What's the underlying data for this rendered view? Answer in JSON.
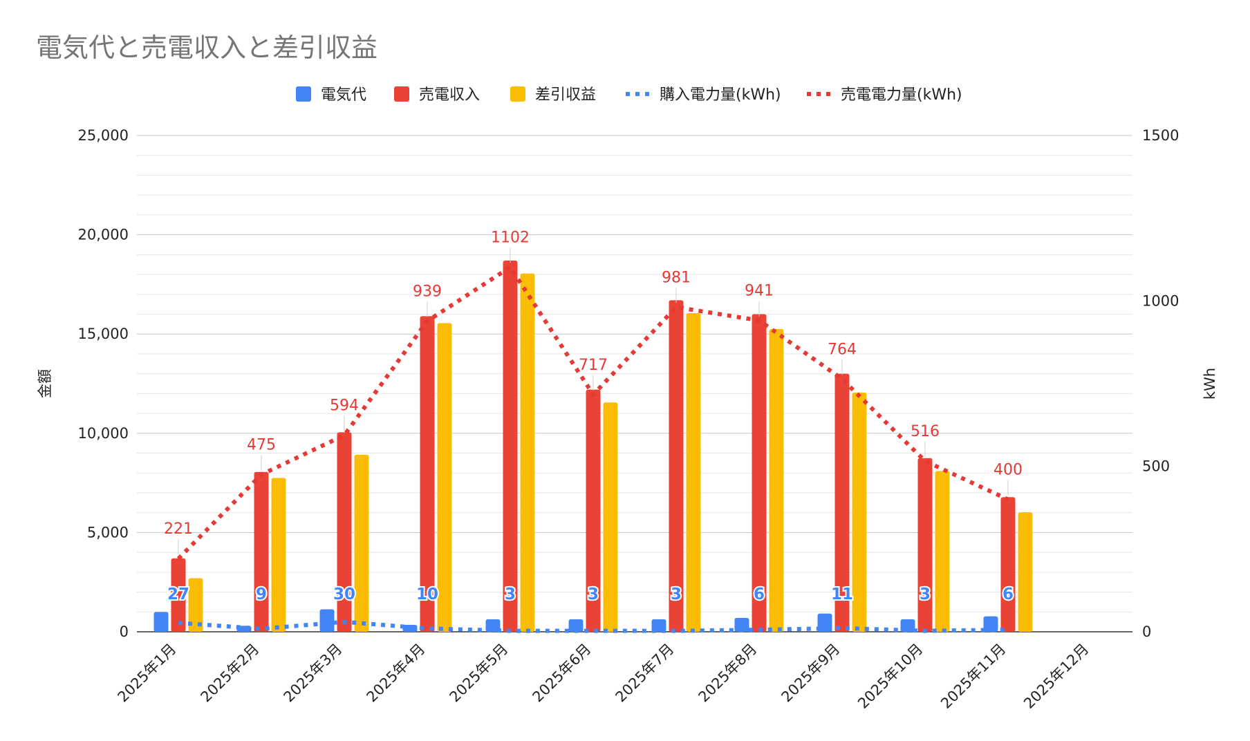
{
  "chart_data": {
    "type": "bar",
    "title": "電気代と売電収入と差引収益",
    "categories": [
      "2025年1月",
      "2025年2月",
      "2025年3月",
      "2025年4月",
      "2025年5月",
      "2025年6月",
      "2025年7月",
      "2025年8月",
      "2025年9月",
      "2025年10月",
      "2025年11月",
      "2025年12月"
    ],
    "ylabel": "金額",
    "y2label": "kWh",
    "ylim": [
      0,
      25000
    ],
    "y2lim": [
      0,
      1500
    ],
    "yticks": [
      "0",
      "5,000",
      "10,000",
      "15,000",
      "20,000",
      "25,000"
    ],
    "y2ticks": [
      "0",
      "500",
      "1000",
      "1500"
    ],
    "legend_position": "top",
    "series": [
      {
        "name": "電気代",
        "kind": "bar",
        "axis": "left",
        "color": "#4285f4",
        "values": [
          1000,
          300,
          1130,
          350,
          630,
          630,
          630,
          700,
          920,
          630,
          780,
          null
        ]
      },
      {
        "name": "売電収入",
        "kind": "bar",
        "axis": "left",
        "color": "#ea4335",
        "values": [
          3700,
          8050,
          10050,
          15900,
          18700,
          12200,
          16700,
          16000,
          13000,
          8750,
          6780,
          null
        ]
      },
      {
        "name": "差引収益",
        "kind": "bar",
        "axis": "left",
        "color": "#fbbc04",
        "values": [
          2700,
          7750,
          8920,
          15550,
          18050,
          11550,
          16050,
          15250,
          12050,
          8100,
          6020,
          null
        ]
      },
      {
        "name": "購入電力量(kWh)",
        "kind": "line",
        "style": "dotted",
        "axis": "right",
        "color": "#4285f4",
        "values": [
          27,
          9,
          30,
          10,
          3,
          3,
          3,
          6,
          11,
          3,
          6,
          null
        ],
        "labels": [
          "27",
          "9",
          "30",
          "10",
          "3",
          "3",
          "3",
          "6",
          "11",
          "3",
          "6",
          ""
        ]
      },
      {
        "name": "売電電力量(kWh)",
        "kind": "line",
        "style": "dotted",
        "axis": "right",
        "color": "#e53935",
        "values": [
          221,
          475,
          594,
          939,
          1102,
          717,
          981,
          941,
          764,
          516,
          400,
          null
        ],
        "labels": [
          "221",
          "475",
          "594",
          "939",
          "1102",
          "717",
          "981",
          "941",
          "764",
          "516",
          "400",
          ""
        ]
      }
    ]
  }
}
